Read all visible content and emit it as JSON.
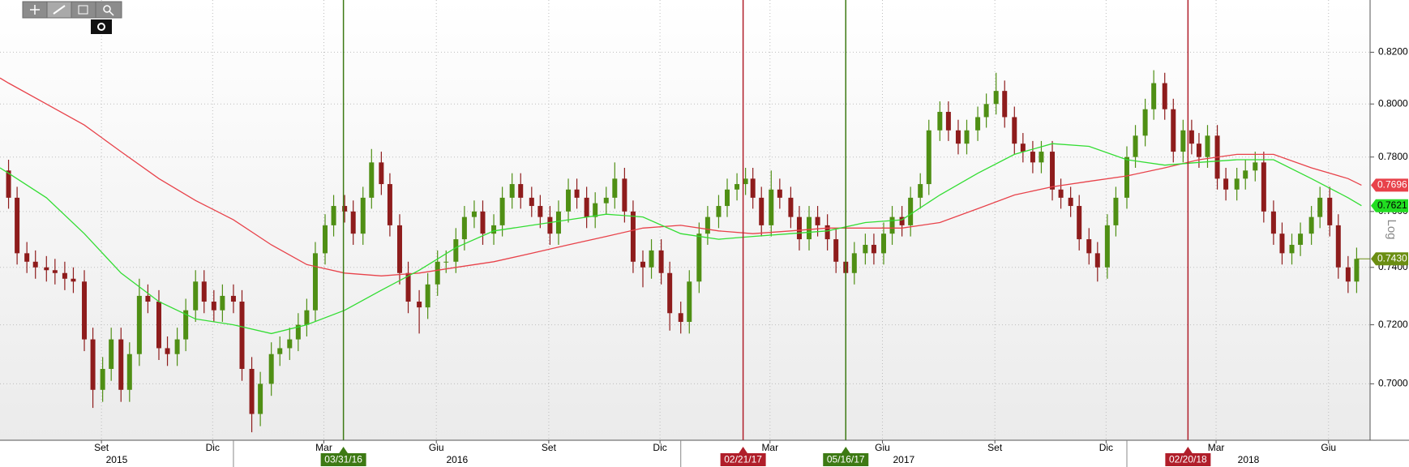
{
  "chart_data": {
    "type": "candlestick",
    "log": true,
    "scale_label": "Log",
    "grid": true,
    "up_color": "#4f8f14",
    "down_color": "#8e1c1c",
    "ylim": [
      0.6814,
      0.8407
    ],
    "yticks": [
      {
        "value": 0.7,
        "label": "0.7000"
      },
      {
        "value": 0.72,
        "label": "0.7200"
      },
      {
        "value": 0.74,
        "label": "0.7400"
      },
      {
        "value": 0.76,
        "label": "0.7600"
      },
      {
        "value": 0.78,
        "label": "0.7800"
      },
      {
        "value": 0.8,
        "label": "0.8000"
      },
      {
        "value": 0.82,
        "label": "0.8200"
      }
    ],
    "xlim": [
      "2015-06-24",
      "2018-07-19"
    ],
    "xticks": [
      {
        "value": "2015-09-15",
        "label": "Set"
      },
      {
        "value": "2015-12-15",
        "label": "Dic"
      },
      {
        "value": "2016-03-15",
        "label": "Mar"
      },
      {
        "value": "2016-06-15",
        "label": "Giu"
      },
      {
        "value": "2016-09-15",
        "label": "Set"
      },
      {
        "value": "2016-12-15",
        "label": "Dic"
      },
      {
        "value": "2017-03-15",
        "label": "Mar"
      },
      {
        "value": "2017-06-15",
        "label": "Giu"
      },
      {
        "value": "2017-09-15",
        "label": "Set"
      },
      {
        "value": "2017-12-15",
        "label": "Dic"
      },
      {
        "value": "2018-03-15",
        "label": "Mar"
      },
      {
        "value": "2018-06-15",
        "label": "Giu"
      }
    ],
    "year_ticks": [
      {
        "value": "2015-01-01",
        "label": "2015"
      },
      {
        "value": "2016-01-01",
        "label": "2016"
      },
      {
        "value": "2017-01-01",
        "label": "2017"
      },
      {
        "value": "2018-01-01",
        "label": "2018"
      }
    ],
    "markers": [
      {
        "x": "2016-03-31",
        "label": "03/31/16",
        "color": "#3d7a14"
      },
      {
        "x": "2017-02-21",
        "label": "02/21/17",
        "color": "#b01e2a"
      },
      {
        "x": "2017-05-16",
        "label": "05/16/17",
        "color": "#3d7a14"
      },
      {
        "x": "2018-02-20",
        "label": "02/20/18",
        "color": "#b01e2a"
      }
    ],
    "last_price_label": "0.7430",
    "last_price_color": "#6b8e12",
    "x": [
      "2015-07-01",
      "2015-07-08",
      "2015-07-16",
      "2015-07-23",
      "2015-08-01",
      "2015-08-08",
      "2015-08-16",
      "2015-08-23",
      "2015-09-01",
      "2015-09-08",
      "2015-09-16",
      "2015-09-23",
      "2015-10-01",
      "2015-10-08",
      "2015-10-16",
      "2015-10-23",
      "2015-11-01",
      "2015-11-08",
      "2015-11-16",
      "2015-11-23",
      "2015-12-01",
      "2015-12-08",
      "2015-12-16",
      "2015-12-23",
      "2016-01-01",
      "2016-01-08",
      "2016-01-16",
      "2016-01-23",
      "2016-02-01",
      "2016-02-08",
      "2016-02-16",
      "2016-02-23",
      "2016-03-01",
      "2016-03-08",
      "2016-03-16",
      "2016-03-23",
      "2016-04-01",
      "2016-04-08",
      "2016-04-16",
      "2016-04-23",
      "2016-05-01",
      "2016-05-08",
      "2016-05-16",
      "2016-05-23",
      "2016-06-01",
      "2016-06-08",
      "2016-06-16",
      "2016-06-23",
      "2016-07-01",
      "2016-07-08",
      "2016-07-16",
      "2016-07-23",
      "2016-08-01",
      "2016-08-08",
      "2016-08-16",
      "2016-08-23",
      "2016-09-01",
      "2016-09-08",
      "2016-09-16",
      "2016-09-23",
      "2016-10-01",
      "2016-10-08",
      "2016-10-16",
      "2016-10-23",
      "2016-11-01",
      "2016-11-08",
      "2016-11-16",
      "2016-11-23",
      "2016-12-01",
      "2016-12-08",
      "2016-12-16",
      "2016-12-23",
      "2017-01-01",
      "2017-01-08",
      "2017-01-16",
      "2017-01-23",
      "2017-02-01",
      "2017-02-08",
      "2017-02-16",
      "2017-02-23",
      "2017-03-01",
      "2017-03-08",
      "2017-03-16",
      "2017-03-23",
      "2017-04-01",
      "2017-04-08",
      "2017-04-16",
      "2017-04-23",
      "2017-05-01",
      "2017-05-08",
      "2017-05-16",
      "2017-05-23",
      "2017-06-01",
      "2017-06-08",
      "2017-06-16",
      "2017-06-23",
      "2017-07-01",
      "2017-07-08",
      "2017-07-16",
      "2017-07-23",
      "2017-08-01",
      "2017-08-08",
      "2017-08-16",
      "2017-08-23",
      "2017-09-01",
      "2017-09-08",
      "2017-09-16",
      "2017-09-23",
      "2017-10-01",
      "2017-10-08",
      "2017-10-16",
      "2017-10-23",
      "2017-11-01",
      "2017-11-08",
      "2017-11-16",
      "2017-11-23",
      "2017-12-01",
      "2017-12-08",
      "2017-12-16",
      "2017-12-23",
      "2018-01-01",
      "2018-01-08",
      "2018-01-16",
      "2018-01-23",
      "2018-02-01",
      "2018-02-08",
      "2018-02-16",
      "2018-02-23",
      "2018-03-01",
      "2018-03-08",
      "2018-03-16",
      "2018-03-23",
      "2018-04-01",
      "2018-04-08",
      "2018-04-16",
      "2018-04-23",
      "2018-05-01",
      "2018-05-08",
      "2018-05-16",
      "2018-05-23",
      "2018-06-01",
      "2018-06-08",
      "2018-06-16",
      "2018-06-23",
      "2018-07-01",
      "2018-07-08"
    ],
    "open": [
      0.775,
      0.765,
      0.745,
      0.742,
      0.74,
      0.739,
      0.738,
      0.736,
      0.735,
      0.715,
      0.698,
      0.705,
      0.715,
      0.698,
      0.71,
      0.73,
      0.728,
      0.712,
      0.71,
      0.715,
      0.725,
      0.735,
      0.728,
      0.725,
      0.73,
      0.728,
      0.705,
      0.69,
      0.7,
      0.71,
      0.712,
      0.715,
      0.72,
      0.725,
      0.745,
      0.755,
      0.762,
      0.76,
      0.752,
      0.765,
      0.778,
      0.77,
      0.755,
      0.738,
      0.728,
      0.726,
      0.734,
      0.742,
      0.742,
      0.75,
      0.758,
      0.76,
      0.752,
      0.755,
      0.765,
      0.77,
      0.765,
      0.762,
      0.758,
      0.752,
      0.76,
      0.768,
      0.765,
      0.758,
      0.763,
      0.765,
      0.772,
      0.76,
      0.742,
      0.74,
      0.746,
      0.738,
      0.724,
      0.721,
      0.735,
      0.752,
      0.758,
      0.762,
      0.768,
      0.77,
      0.772,
      0.765,
      0.755,
      0.768,
      0.765,
      0.758,
      0.75,
      0.758,
      0.755,
      0.75,
      0.742,
      0.738,
      0.745,
      0.748,
      0.745,
      0.752,
      0.758,
      0.755,
      0.765,
      0.77,
      0.79,
      0.797,
      0.79,
      0.785,
      0.79,
      0.795,
      0.8,
      0.805,
      0.795,
      0.785,
      0.782,
      0.778,
      0.782,
      0.768,
      0.765,
      0.762,
      0.75,
      0.745,
      0.74,
      0.755,
      0.765,
      0.78,
      0.788,
      0.798,
      0.808,
      0.798,
      0.782,
      0.79,
      0.785,
      0.78,
      0.788,
      0.772,
      0.768,
      0.772,
      0.775,
      0.778,
      0.76,
      0.752,
      0.745,
      0.748,
      0.752,
      0.758,
      0.765,
      0.755,
      0.74,
      0.735
    ],
    "high": [
      0.779,
      0.769,
      0.749,
      0.746,
      0.744,
      0.743,
      0.742,
      0.74,
      0.739,
      0.719,
      0.709,
      0.719,
      0.719,
      0.714,
      0.736,
      0.734,
      0.732,
      0.716,
      0.719,
      0.729,
      0.739,
      0.739,
      0.732,
      0.734,
      0.734,
      0.732,
      0.709,
      0.704,
      0.714,
      0.716,
      0.719,
      0.724,
      0.729,
      0.749,
      0.759,
      0.766,
      0.766,
      0.764,
      0.769,
      0.783,
      0.782,
      0.774,
      0.759,
      0.742,
      0.732,
      0.738,
      0.746,
      0.746,
      0.754,
      0.762,
      0.764,
      0.764,
      0.759,
      0.769,
      0.774,
      0.774,
      0.769,
      0.766,
      0.762,
      0.764,
      0.772,
      0.772,
      0.769,
      0.767,
      0.769,
      0.778,
      0.776,
      0.764,
      0.746,
      0.75,
      0.75,
      0.742,
      0.728,
      0.739,
      0.756,
      0.762,
      0.766,
      0.772,
      0.774,
      0.776,
      0.776,
      0.769,
      0.775,
      0.772,
      0.769,
      0.762,
      0.762,
      0.762,
      0.759,
      0.754,
      0.746,
      0.749,
      0.752,
      0.752,
      0.756,
      0.762,
      0.762,
      0.769,
      0.774,
      0.794,
      0.801,
      0.801,
      0.794,
      0.794,
      0.799,
      0.804,
      0.812,
      0.809,
      0.799,
      0.789,
      0.786,
      0.786,
      0.786,
      0.772,
      0.769,
      0.766,
      0.754,
      0.749,
      0.759,
      0.769,
      0.784,
      0.792,
      0.802,
      0.813,
      0.812,
      0.802,
      0.794,
      0.794,
      0.789,
      0.792,
      0.792,
      0.776,
      0.776,
      0.779,
      0.782,
      0.782,
      0.764,
      0.756,
      0.752,
      0.756,
      0.762,
      0.769,
      0.769,
      0.759,
      0.744,
      0.747
    ],
    "low": [
      0.761,
      0.741,
      0.738,
      0.736,
      0.735,
      0.734,
      0.732,
      0.731,
      0.711,
      0.692,
      0.694,
      0.701,
      0.694,
      0.694,
      0.706,
      0.724,
      0.708,
      0.706,
      0.706,
      0.711,
      0.721,
      0.724,
      0.721,
      0.721,
      0.724,
      0.701,
      0.684,
      0.686,
      0.696,
      0.706,
      0.708,
      0.711,
      0.716,
      0.721,
      0.741,
      0.751,
      0.756,
      0.748,
      0.748,
      0.761,
      0.766,
      0.751,
      0.734,
      0.724,
      0.717,
      0.722,
      0.73,
      0.738,
      0.738,
      0.746,
      0.754,
      0.748,
      0.748,
      0.751,
      0.761,
      0.761,
      0.758,
      0.754,
      0.748,
      0.748,
      0.756,
      0.761,
      0.754,
      0.754,
      0.759,
      0.761,
      0.756,
      0.738,
      0.733,
      0.736,
      0.734,
      0.718,
      0.717,
      0.717,
      0.731,
      0.748,
      0.754,
      0.758,
      0.764,
      0.766,
      0.761,
      0.751,
      0.751,
      0.761,
      0.754,
      0.746,
      0.746,
      0.751,
      0.746,
      0.738,
      0.734,
      0.734,
      0.741,
      0.741,
      0.741,
      0.748,
      0.751,
      0.751,
      0.761,
      0.766,
      0.786,
      0.786,
      0.781,
      0.781,
      0.786,
      0.791,
      0.796,
      0.791,
      0.781,
      0.778,
      0.774,
      0.774,
      0.764,
      0.761,
      0.758,
      0.746,
      0.741,
      0.735,
      0.736,
      0.751,
      0.761,
      0.776,
      0.784,
      0.794,
      0.794,
      0.778,
      0.778,
      0.781,
      0.776,
      0.776,
      0.768,
      0.764,
      0.764,
      0.768,
      0.771,
      0.756,
      0.748,
      0.741,
      0.741,
      0.744,
      0.748,
      0.754,
      0.751,
      0.736,
      0.731,
      0.731
    ],
    "close": [
      0.765,
      0.745,
      0.742,
      0.74,
      0.739,
      0.738,
      0.736,
      0.735,
      0.715,
      0.698,
      0.705,
      0.715,
      0.698,
      0.71,
      0.73,
      0.728,
      0.712,
      0.71,
      0.715,
      0.725,
      0.735,
      0.728,
      0.725,
      0.73,
      0.728,
      0.705,
      0.69,
      0.7,
      0.71,
      0.712,
      0.715,
      0.72,
      0.725,
      0.745,
      0.755,
      0.762,
      0.76,
      0.752,
      0.765,
      0.778,
      0.77,
      0.755,
      0.738,
      0.728,
      0.726,
      0.734,
      0.742,
      0.742,
      0.75,
      0.758,
      0.76,
      0.752,
      0.755,
      0.765,
      0.77,
      0.765,
      0.762,
      0.758,
      0.752,
      0.76,
      0.768,
      0.765,
      0.758,
      0.763,
      0.765,
      0.772,
      0.76,
      0.742,
      0.74,
      0.746,
      0.738,
      0.724,
      0.721,
      0.735,
      0.752,
      0.758,
      0.762,
      0.768,
      0.77,
      0.772,
      0.765,
      0.755,
      0.768,
      0.765,
      0.758,
      0.75,
      0.758,
      0.755,
      0.75,
      0.742,
      0.738,
      0.745,
      0.748,
      0.745,
      0.752,
      0.758,
      0.755,
      0.765,
      0.77,
      0.79,
      0.797,
      0.79,
      0.785,
      0.79,
      0.795,
      0.8,
      0.805,
      0.795,
      0.785,
      0.782,
      0.778,
      0.782,
      0.768,
      0.765,
      0.762,
      0.75,
      0.745,
      0.74,
      0.755,
      0.765,
      0.78,
      0.788,
      0.798,
      0.808,
      0.798,
      0.782,
      0.79,
      0.785,
      0.78,
      0.788,
      0.772,
      0.768,
      0.772,
      0.775,
      0.778,
      0.76,
      0.752,
      0.745,
      0.748,
      0.752,
      0.758,
      0.765,
      0.755,
      0.74,
      0.735,
      0.743
    ],
    "lines": [
      {
        "color": "#e8424a",
        "label_color": "#e8424a",
        "label_text": "#ffffff",
        "x": [
          "2015-06-24",
          "2015-07-01",
          "2015-08-01",
          "2015-09-01",
          "2015-10-01",
          "2015-11-01",
          "2015-12-01",
          "2016-01-01",
          "2016-02-01",
          "2016-03-01",
          "2016-04-01",
          "2016-05-01",
          "2016-06-01",
          "2016-07-01",
          "2016-08-01",
          "2016-09-01",
          "2016-10-01",
          "2016-11-01",
          "2016-12-01",
          "2017-01-01",
          "2017-02-01",
          "2017-03-01",
          "2017-04-01",
          "2017-05-01",
          "2017-06-01",
          "2017-07-01",
          "2017-08-01",
          "2017-09-01",
          "2017-10-01",
          "2017-11-01",
          "2017-12-01",
          "2018-01-01",
          "2018-02-01",
          "2018-03-01",
          "2018-04-01",
          "2018-05-01",
          "2018-06-01",
          "2018-07-01",
          "2018-07-12"
        ],
        "values": [
          0.81,
          0.808,
          0.8,
          0.792,
          0.782,
          0.772,
          0.764,
          0.757,
          0.748,
          0.741,
          0.738,
          0.737,
          0.738,
          0.74,
          0.742,
          0.745,
          0.748,
          0.751,
          0.754,
          0.755,
          0.753,
          0.752,
          0.753,
          0.754,
          0.754,
          0.754,
          0.756,
          0.761,
          0.766,
          0.769,
          0.771,
          0.773,
          0.776,
          0.779,
          0.781,
          0.781,
          0.776,
          0.772,
          0.7696
        ]
      },
      {
        "color": "#33dd33",
        "label_color": "#22dd22",
        "label_text": "#000000",
        "x": [
          "2015-06-24",
          "2015-07-01",
          "2015-08-01",
          "2015-09-01",
          "2015-10-01",
          "2015-11-01",
          "2015-12-01",
          "2016-01-01",
          "2016-02-01",
          "2016-03-01",
          "2016-04-01",
          "2016-05-01",
          "2016-06-01",
          "2016-07-01",
          "2016-08-01",
          "2016-09-01",
          "2016-10-01",
          "2016-11-01",
          "2016-12-01",
          "2017-01-01",
          "2017-02-01",
          "2017-03-01",
          "2017-04-01",
          "2017-05-01",
          "2017-06-01",
          "2017-07-01",
          "2017-08-01",
          "2017-09-01",
          "2017-10-01",
          "2017-11-01",
          "2017-12-01",
          "2018-01-01",
          "2018-02-01",
          "2018-03-01",
          "2018-04-01",
          "2018-05-01",
          "2018-06-01",
          "2018-07-01",
          "2018-07-12"
        ],
        "values": [
          0.776,
          0.774,
          0.765,
          0.752,
          0.738,
          0.728,
          0.722,
          0.72,
          0.717,
          0.72,
          0.725,
          0.732,
          0.739,
          0.747,
          0.753,
          0.755,
          0.757,
          0.759,
          0.758,
          0.752,
          0.75,
          0.751,
          0.752,
          0.753,
          0.756,
          0.757,
          0.766,
          0.774,
          0.781,
          0.785,
          0.784,
          0.779,
          0.777,
          0.778,
          0.779,
          0.779,
          0.772,
          0.765,
          0.7621
        ]
      }
    ]
  }
}
